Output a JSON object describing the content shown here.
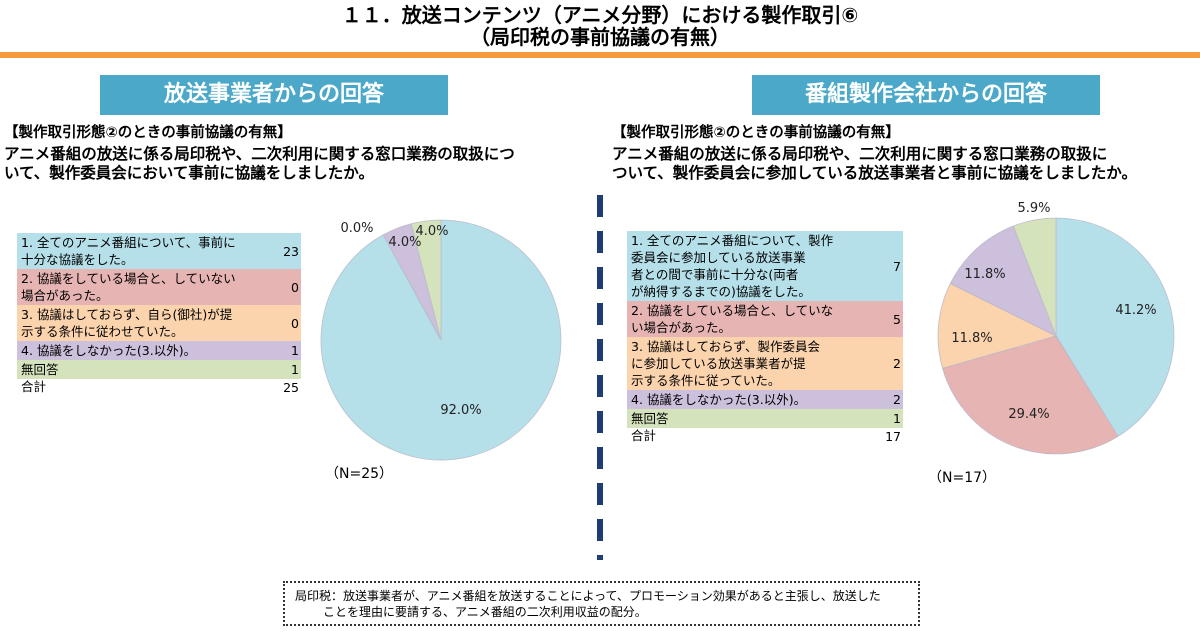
{
  "title": {
    "line1": "１１．放送コンテンツ（アニメ分野）における製作取引⑥",
    "line2": "（局印税の事前協議の有無）"
  },
  "left": {
    "banner": "放送事業者からの回答",
    "question_head": "【製作取引形態②のときの事前協議の有無】",
    "question_line1": "アニメ番組の放送に係る局印税や、二次利用に関する窓口業務の取扱につ",
    "question_line2": "いて、製作委員会において事前に協議をしましたか。",
    "table": [
      {
        "label_lines": [
          "1. 全てのアニメ番組について、事前に",
          "十分な協議をした。"
        ],
        "value": "23"
      },
      {
        "label_lines": [
          "2. 協議をしている場合と、していない",
          "場合があった。"
        ],
        "value": "0"
      },
      {
        "label_lines": [
          "3. 協議はしておらず、自ら(御社)が提",
          "示する条件に従わせていた。"
        ],
        "value": "0"
      },
      {
        "label_lines": [
          "4. 協議をしなかった(3.以外)。"
        ],
        "value": "1"
      },
      {
        "label_lines": [
          "無回答"
        ],
        "value": "1"
      }
    ],
    "total": {
      "label": "合計",
      "value": "25"
    },
    "n_label": "（N=25）"
  },
  "right": {
    "banner": "番組製作会社からの回答",
    "question_head": "【製作取引形態②のときの事前協議の有無】",
    "question_line1": "アニメ番組の放送に係る局印税や、二次利用に関する窓口業務の取扱に",
    "question_line2": "ついて、製作委員会に参加している放送事業者と事前に協議をしましたか。",
    "table": [
      {
        "label_lines": [
          "1. 全てのアニメ番組について、製作",
          "委員会に参加している放送事業",
          "者との間で事前に十分な(両者",
          "が納得するまでの)協議をした。"
        ],
        "value": "7"
      },
      {
        "label_lines": [
          "2. 協議をしている場合と、していな",
          "い場合があった。"
        ],
        "value": "5"
      },
      {
        "label_lines": [
          "3. 協議はしておらず、製作委員会",
          "に参加している放送事業者が提",
          "示する条件に従っていた。"
        ],
        "value": "2"
      },
      {
        "label_lines": [
          "4. 協議をしなかった(3.以外)。"
        ],
        "value": "2"
      },
      {
        "label_lines": [
          "無回答"
        ],
        "value": "1"
      }
    ],
    "total": {
      "label": "合計",
      "value": "17"
    },
    "n_label": "（N=17）"
  },
  "chart_data": [
    {
      "type": "pie",
      "series_colors": [
        "#b5dfe9",
        "#e6b4b3",
        "#fbd3ad",
        "#cdc0dc",
        "#d5e3bd"
      ],
      "values": [
        23,
        0,
        0,
        1,
        1
      ],
      "labels": [
        "92.0%",
        "0.0%",
        "0.0%",
        "4.0%",
        "4.0%"
      ],
      "n": "25"
    },
    {
      "type": "pie",
      "series_colors": [
        "#b5dfe9",
        "#e6b4b3",
        "#fbd3ad",
        "#cdc0dc",
        "#d5e3bd"
      ],
      "values": [
        7,
        5,
        2,
        2,
        1
      ],
      "labels": [
        "41.2%",
        "29.4%",
        "11.8%",
        "11.8%",
        "5.9%"
      ],
      "n": "17"
    }
  ],
  "footnote": {
    "line1": "局印税：放送事業者が、アニメ番組を放送することによって、プロモーション効果があると主張し、放送した",
    "line2": "ことを理由に要請する、アニメ番組の二次利用収益の配分。"
  }
}
